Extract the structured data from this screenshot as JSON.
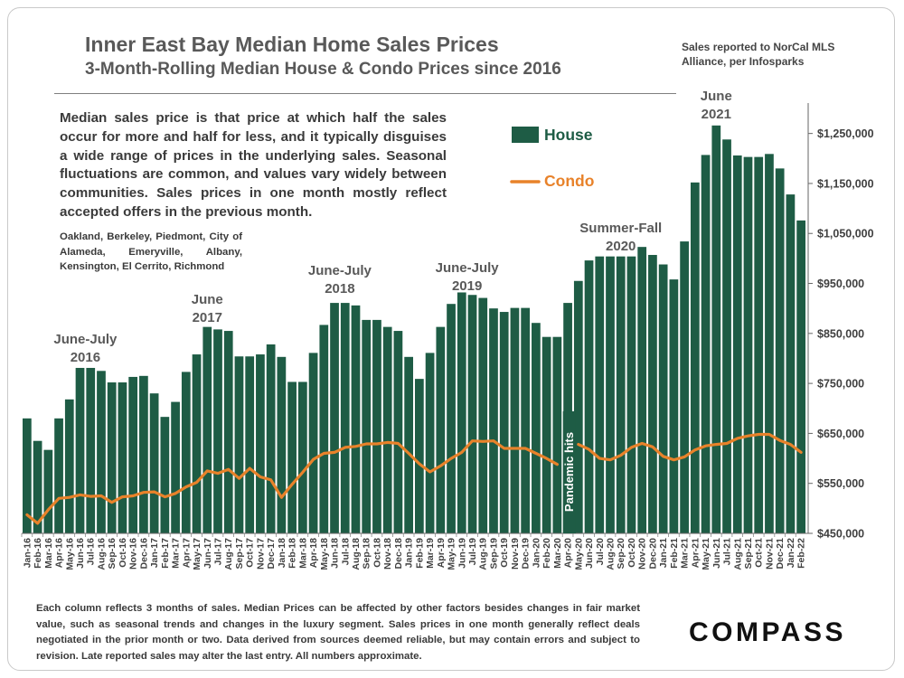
{
  "header": {
    "title": "Inner East Bay Median Home Sales Prices",
    "subtitle": "3-Month-Rolling Median House & Condo Prices since 2016",
    "source_note": "Sales reported to NorCal MLS Alliance, per Infosparks"
  },
  "description": "Median sales price is that price at which half the sales occur for more and half for less, and it typically disguises a wide range of prices in the underlying sales. Seasonal fluctuations are common, and values vary widely between communities. Sales prices in one month mostly reflect accepted offers in the previous month.",
  "cities": "Oakland, Berkeley, Piedmont, City of Alameda, Emeryville, Albany, Kensington, El Cerrito, Richmond",
  "footnote": "Each column reflects 3 months of sales. Median Prices can be affected by other factors besides changes in fair market value, such as seasonal trends and changes in the luxury segment. Sales prices in one month generally reflect deals negotiated in the prior month or two. Data derived from sources deemed reliable, but may contain errors and subject to revision. Late reported sales may alter the last entry. All numbers approximate.",
  "logo": "COMPASS",
  "colors": {
    "house": "#1e5c45",
    "condo": "#e8822a",
    "text": "#595959"
  },
  "chart_data": {
    "type": "bar",
    "categories": [
      "Jan-16",
      "Feb-16",
      "Mar-16",
      "Apr-16",
      "May-16",
      "Jun-16",
      "Jul-16",
      "Aug-16",
      "Sep-16",
      "Oct-16",
      "Nov-16",
      "Dec-16",
      "Jan-17",
      "Feb-17",
      "Mar-17",
      "Apr-17",
      "May-17",
      "Jun-17",
      "Jul-17",
      "Aug-17",
      "Sep-17",
      "Oct-17",
      "Nov-17",
      "Dec-17",
      "Jan-18",
      "Feb-18",
      "Mar-18",
      "Apr-18",
      "May-18",
      "Jun-18",
      "Jul-18",
      "Aug-18",
      "Sep-18",
      "Oct-18",
      "Nov-18",
      "Dec-18",
      "Jan-19",
      "Feb-19",
      "Mar-19",
      "Apr-19",
      "May-19",
      "Jun-19",
      "Jul-19",
      "Aug-19",
      "Sep-19",
      "Oct-19",
      "Nov-19",
      "Dec-19",
      "Jan-20",
      "Feb-20",
      "Mar-20",
      "Apr-20",
      "May-20",
      "Jun-20",
      "Jul-20",
      "Aug-20",
      "Sep-20",
      "Oct-20",
      "Nov-20",
      "Dec-20",
      "Jan-21",
      "Feb-21",
      "Mar-21",
      "Apr-21",
      "May-21",
      "Jun-21",
      "Jul-21",
      "Aug-21",
      "Sep-21",
      "Oct-21",
      "Nov-21",
      "Dec-21",
      "Jan-22",
      "Feb-22"
    ],
    "tick_labels": [
      "Jan-16",
      "Feb-16",
      "Mar-16",
      "Apr-16",
      "May-16",
      "Jun-16",
      "Jul-16",
      "Aug-16",
      "Sep-16",
      "Oct-16",
      "Nov-16",
      "Dec-16",
      "Jan-17",
      "Feb-17",
      "Mar-17",
      "Apr-17",
      "May-17",
      "Jun-17",
      "Jul-17",
      "Aug-17",
      "Sep-17",
      "Oct-17",
      "Nov-17",
      "Dec-17",
      "Jan-18",
      "Feb-18",
      "Mar-18",
      "Apr-18",
      "May-18",
      "Jun-18",
      "Jul-18",
      "Aug-18",
      "Sep-18",
      "Oct-18",
      "Nov-18",
      "Dec-18",
      "Jan-19",
      "Feb-19",
      "Mar-19",
      "Apr-19",
      "May-19",
      "Jun-19",
      "Jul-19",
      "Aug-19",
      "Sep-19",
      "Oct-19",
      "Nov-19",
      "Dec-19",
      "Jan-20",
      "Feb-20",
      "Mar-20",
      "Apr-20",
      "May-20",
      "Jun-20",
      "Jul-20",
      "Aug-20",
      "Sep-20",
      "Oct-20",
      "Nov-20",
      "Dec-20",
      "Jan-21",
      "Feb-21",
      "Mar-21",
      "Apr-21",
      "May-21",
      "Jun-21",
      "Jul-21",
      "Aug-21",
      "Sep-21",
      "Oct-21",
      "Nov-21",
      "Dec-21",
      "Jan-22",
      "Feb-22"
    ],
    "series": [
      {
        "name": "House",
        "kind": "bar",
        "values": [
          680000,
          635000,
          617000,
          680000,
          718000,
          781000,
          781000,
          775000,
          752000,
          752000,
          763000,
          765000,
          730000,
          683000,
          713000,
          773000,
          808000,
          863000,
          858000,
          855000,
          804000,
          804000,
          808000,
          828000,
          803000,
          753000,
          753000,
          811000,
          867000,
          911000,
          911000,
          906000,
          877000,
          877000,
          863000,
          855000,
          803000,
          759000,
          811000,
          863000,
          909000,
          932000,
          927000,
          921000,
          900000,
          893000,
          901000,
          901000,
          871000,
          843000,
          843000,
          911000,
          955000,
          996000,
          1004000,
          1004000,
          1004000,
          1004000,
          1023000,
          1007000,
          988000,
          958000,
          1034000,
          1152000,
          1207000,
          1266000,
          1238000,
          1206000,
          1203000,
          1203000,
          1209000,
          1180000,
          1128000,
          1076000
        ]
      },
      {
        "name": "Condo",
        "kind": "line",
        "values": [
          487000,
          470000,
          497000,
          520000,
          522000,
          527000,
          524000,
          525000,
          512000,
          523000,
          525000,
          532000,
          533000,
          523000,
          530000,
          543000,
          552000,
          575000,
          570000,
          578000,
          560000,
          580000,
          563000,
          557000,
          522000,
          548000,
          572000,
          598000,
          610000,
          612000,
          622000,
          624000,
          629000,
          629000,
          632000,
          630000,
          610000,
          589000,
          573000,
          585000,
          600000,
          612000,
          635000,
          634000,
          635000,
          620000,
          620000,
          620000,
          610000,
          600000,
          588000,
          null,
          628000,
          618000,
          600000,
          597000,
          606000,
          622000,
          630000,
          623000,
          604000,
          597000,
          603000,
          617000,
          625000,
          628000,
          630000,
          640000,
          645000,
          648000,
          648000,
          636000,
          628000,
          612000
        ]
      }
    ],
    "ylim": [
      450000,
      1300000
    ],
    "yticks": [
      "$450,000",
      "$550,000",
      "$650,000",
      "$750,000",
      "$850,000",
      "$950,000",
      "$1,050,000",
      "$1,150,000",
      "$1,250,000"
    ],
    "annotations": [
      {
        "lines": [
          "June-July",
          "2016"
        ],
        "index": 5.5
      },
      {
        "lines": [
          "June",
          "2017"
        ],
        "index": 17
      },
      {
        "lines": [
          "June-July",
          "2018"
        ],
        "index": 29.5
      },
      {
        "lines": [
          "June-July",
          "2019"
        ],
        "index": 41.5
      },
      {
        "lines": [
          "Summer-Fall",
          "2020"
        ],
        "index": 56
      },
      {
        "lines": [
          "June",
          "2021"
        ],
        "index": 65
      }
    ],
    "pandemic_label": "Pandemic hits",
    "pandemic_index": 51,
    "legend": [
      {
        "label": "House",
        "kind": "bar"
      },
      {
        "label": "Condo",
        "kind": "line"
      }
    ],
    "legend_position": "top-center",
    "yaxis_position": "right",
    "grid": false
  }
}
